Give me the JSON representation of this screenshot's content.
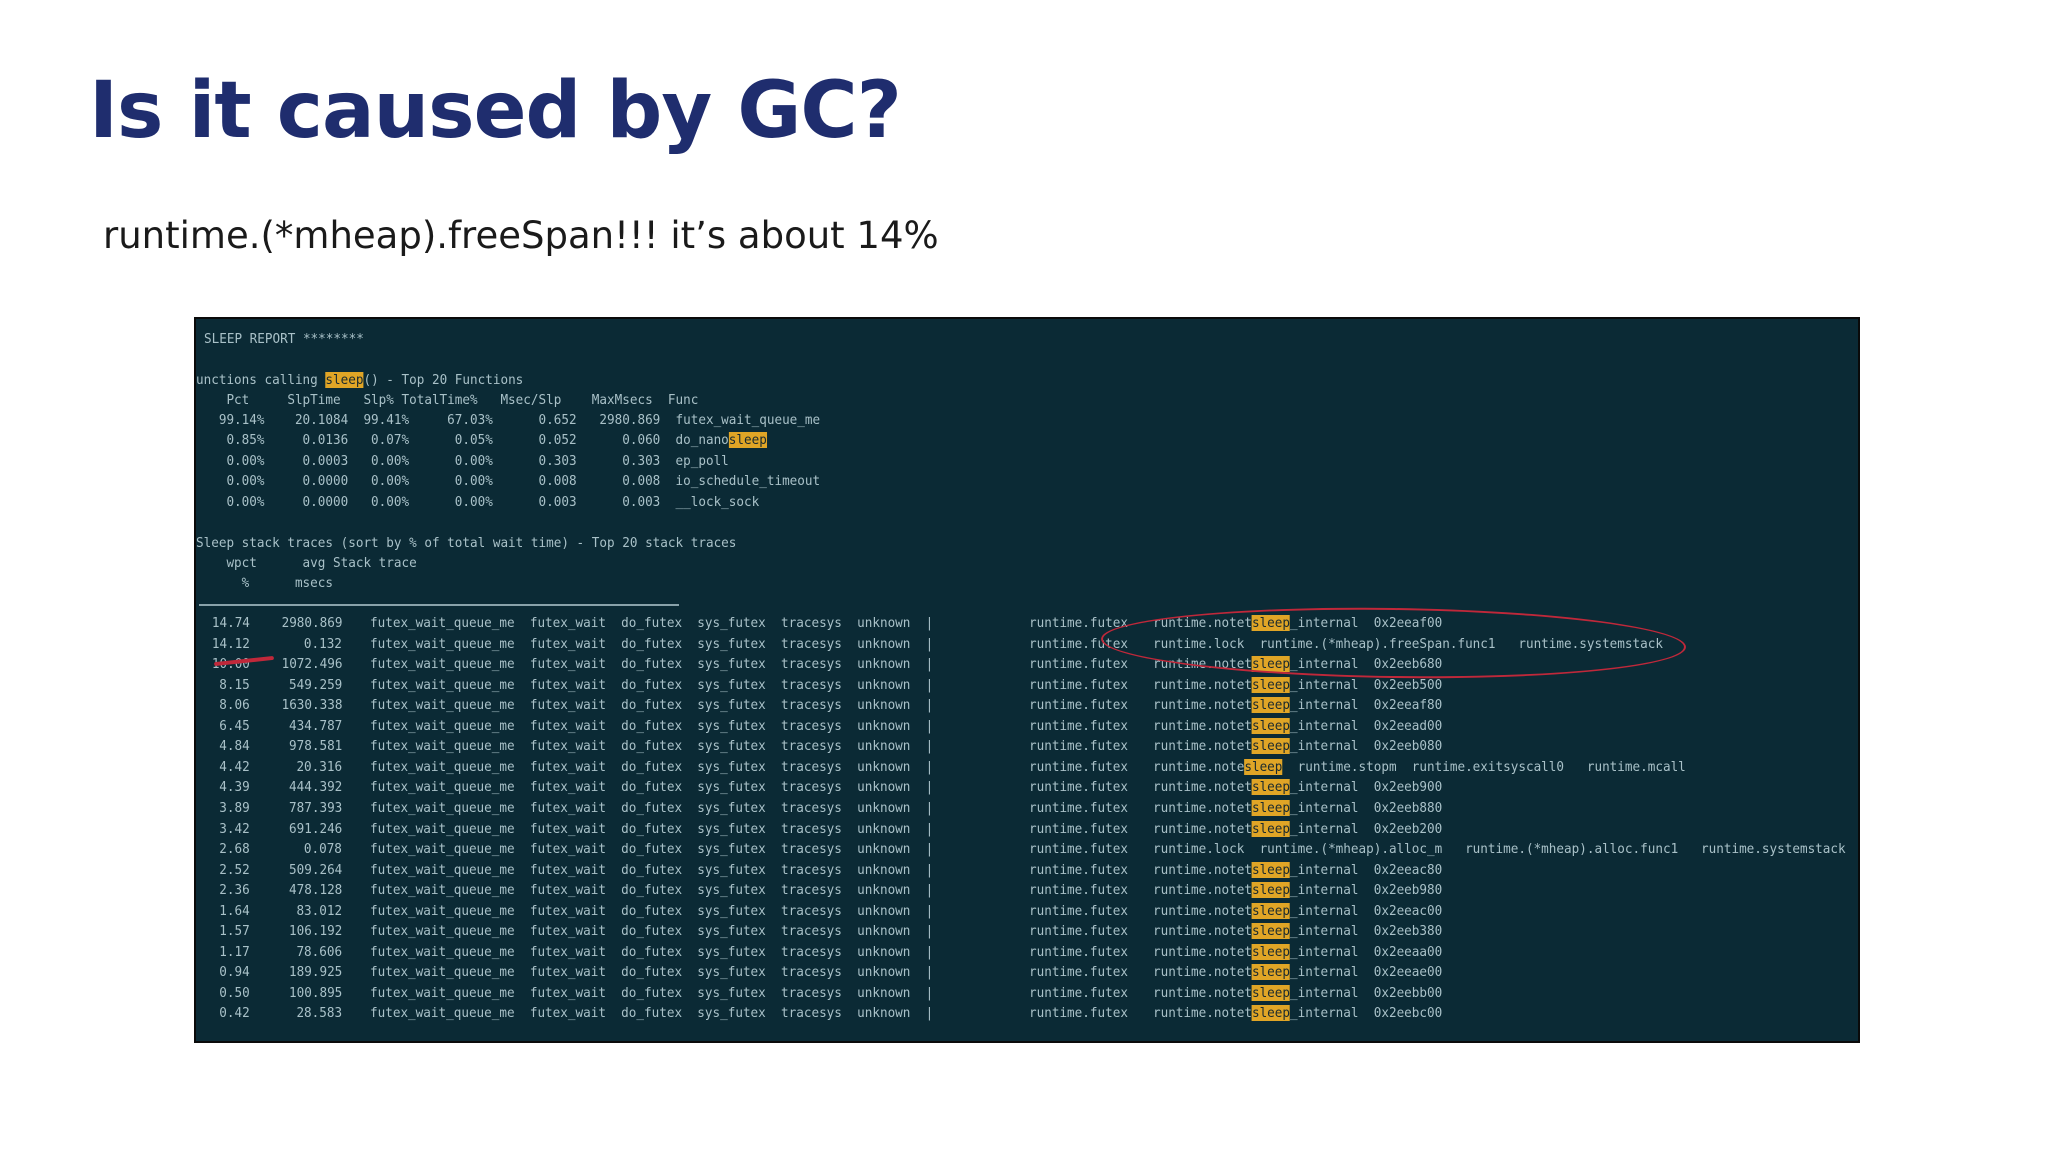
{
  "slide": {
    "title": "Is it caused by GC?",
    "subtitle": "runtime.(*mheap).freeSpan!!! it’s about 14%"
  },
  "terminal": {
    "report_header": "SLEEP REPORT ********",
    "functions_heading_pre": "unctions calling ",
    "functions_heading_hl": "sleep",
    "functions_heading_post": "() - Top 20 Functions",
    "functions_columns": "    Pct     SlpTime   Slp% TotalTime%   Msec/Slp    MaxMsecs  Func",
    "functions_rows": [
      {
        "text": "   99.14%    20.1084  99.41%     67.03%      0.652   2980.869  futex_wait_queue_me",
        "hl": ""
      },
      {
        "text": "    0.85%     0.0136   0.07%      0.05%      0.052      0.060  do_nano",
        "hl": "sleep"
      },
      {
        "text": "    0.00%     0.0003   0.00%      0.00%      0.303      0.303  ep_poll",
        "hl": ""
      },
      {
        "text": "    0.00%     0.0000   0.00%      0.00%      0.008      0.008  io_schedule_timeout",
        "hl": ""
      },
      {
        "text": "    0.00%     0.0000   0.00%      0.00%      0.003      0.003  __lock_sock",
        "hl": ""
      }
    ],
    "stack_heading": "Sleep stack traces (sort by % of total wait time) - Top 20 stack traces",
    "stack_col_1": "    wpct      avg Stack trace",
    "stack_col_2": "      %      msecs",
    "stack_common": "futex_wait_queue_me  futex_wait  do_futex  sys_futex  tracesys  unknown  |",
    "stack_rows": [
      {
        "pct": "14.74",
        "avg": "2980.869",
        "fn1": "runtime.futex",
        "fn2": "runtime.notet",
        "hl": "sleep",
        "tail": "_internal  0x2eeaf00"
      },
      {
        "pct": "14.12",
        "avg": "0.132",
        "fn1": "runtime.futex",
        "fn2": "runtime.lock",
        "hl": "",
        "tail": "  runtime.(*mheap).freeSpan.func1   runtime.systemstack"
      },
      {
        "pct": "10.00",
        "avg": "1072.496",
        "fn1": "runtime.futex",
        "fn2": "runtime.notet",
        "hl": "sleep",
        "tail": "_internal  0x2eeb680"
      },
      {
        "pct": "8.15",
        "avg": "549.259",
        "fn1": "runtime.futex",
        "fn2": "runtime.notet",
        "hl": "sleep",
        "tail": "_internal  0x2eeb500"
      },
      {
        "pct": "8.06",
        "avg": "1630.338",
        "fn1": "runtime.futex",
        "fn2": "runtime.notet",
        "hl": "sleep",
        "tail": "_internal  0x2eeaf80"
      },
      {
        "pct": "6.45",
        "avg": "434.787",
        "fn1": "runtime.futex",
        "fn2": "runtime.notet",
        "hl": "sleep",
        "tail": "_internal  0x2eead00"
      },
      {
        "pct": "4.84",
        "avg": "978.581",
        "fn1": "runtime.futex",
        "fn2": "runtime.notet",
        "hl": "sleep",
        "tail": "_internal  0x2eeb080"
      },
      {
        "pct": "4.42",
        "avg": "20.316",
        "fn1": "runtime.futex",
        "fn2": "runtime.note",
        "hl": "sleep",
        "tail": "  runtime.stopm  runtime.exitsyscall0   runtime.mcall"
      },
      {
        "pct": "4.39",
        "avg": "444.392",
        "fn1": "runtime.futex",
        "fn2": "runtime.notet",
        "hl": "sleep",
        "tail": "_internal  0x2eeb900"
      },
      {
        "pct": "3.89",
        "avg": "787.393",
        "fn1": "runtime.futex",
        "fn2": "runtime.notet",
        "hl": "sleep",
        "tail": "_internal  0x2eeb880"
      },
      {
        "pct": "3.42",
        "avg": "691.246",
        "fn1": "runtime.futex",
        "fn2": "runtime.notet",
        "hl": "sleep",
        "tail": "_internal  0x2eeb200"
      },
      {
        "pct": "2.68",
        "avg": "0.078",
        "fn1": "runtime.futex",
        "fn2": "runtime.lock",
        "hl": "",
        "tail": "  runtime.(*mheap).alloc_m   runtime.(*mheap).alloc.func1   runtime.systemstack"
      },
      {
        "pct": "2.52",
        "avg": "509.264",
        "fn1": "runtime.futex",
        "fn2": "runtime.notet",
        "hl": "sleep",
        "tail": "_internal  0x2eeac80"
      },
      {
        "pct": "2.36",
        "avg": "478.128",
        "fn1": "runtime.futex",
        "fn2": "runtime.notet",
        "hl": "sleep",
        "tail": "_internal  0x2eeb980"
      },
      {
        "pct": "1.64",
        "avg": "83.012",
        "fn1": "runtime.futex",
        "fn2": "runtime.notet",
        "hl": "sleep",
        "tail": "_internal  0x2eeac00"
      },
      {
        "pct": "1.57",
        "avg": "106.192",
        "fn1": "runtime.futex",
        "fn2": "runtime.notet",
        "hl": "sleep",
        "tail": "_internal  0x2eeb380"
      },
      {
        "pct": "1.17",
        "avg": "78.606",
        "fn1": "runtime.futex",
        "fn2": "runtime.notet",
        "hl": "sleep",
        "tail": "_internal  0x2eeaa00"
      },
      {
        "pct": "0.94",
        "avg": "189.925",
        "fn1": "runtime.futex",
        "fn2": "runtime.notet",
        "hl": "sleep",
        "tail": "_internal  0x2eeae00"
      },
      {
        "pct": "0.50",
        "avg": "100.895",
        "fn1": "runtime.futex",
        "fn2": "runtime.notet",
        "hl": "sleep",
        "tail": "_internal  0x2eebb00"
      },
      {
        "pct": "0.42",
        "avg": "28.583",
        "fn1": "runtime.futex",
        "fn2": "runtime.notet",
        "hl": "sleep",
        "tail": "_internal  0x2eebc00"
      }
    ]
  },
  "colors": {
    "title": "#1f2d6e",
    "terminal_bg": "#0b2a35",
    "terminal_text": "#a9c1c8",
    "highlight": "#e0a526",
    "annotation": "#c0283a"
  }
}
